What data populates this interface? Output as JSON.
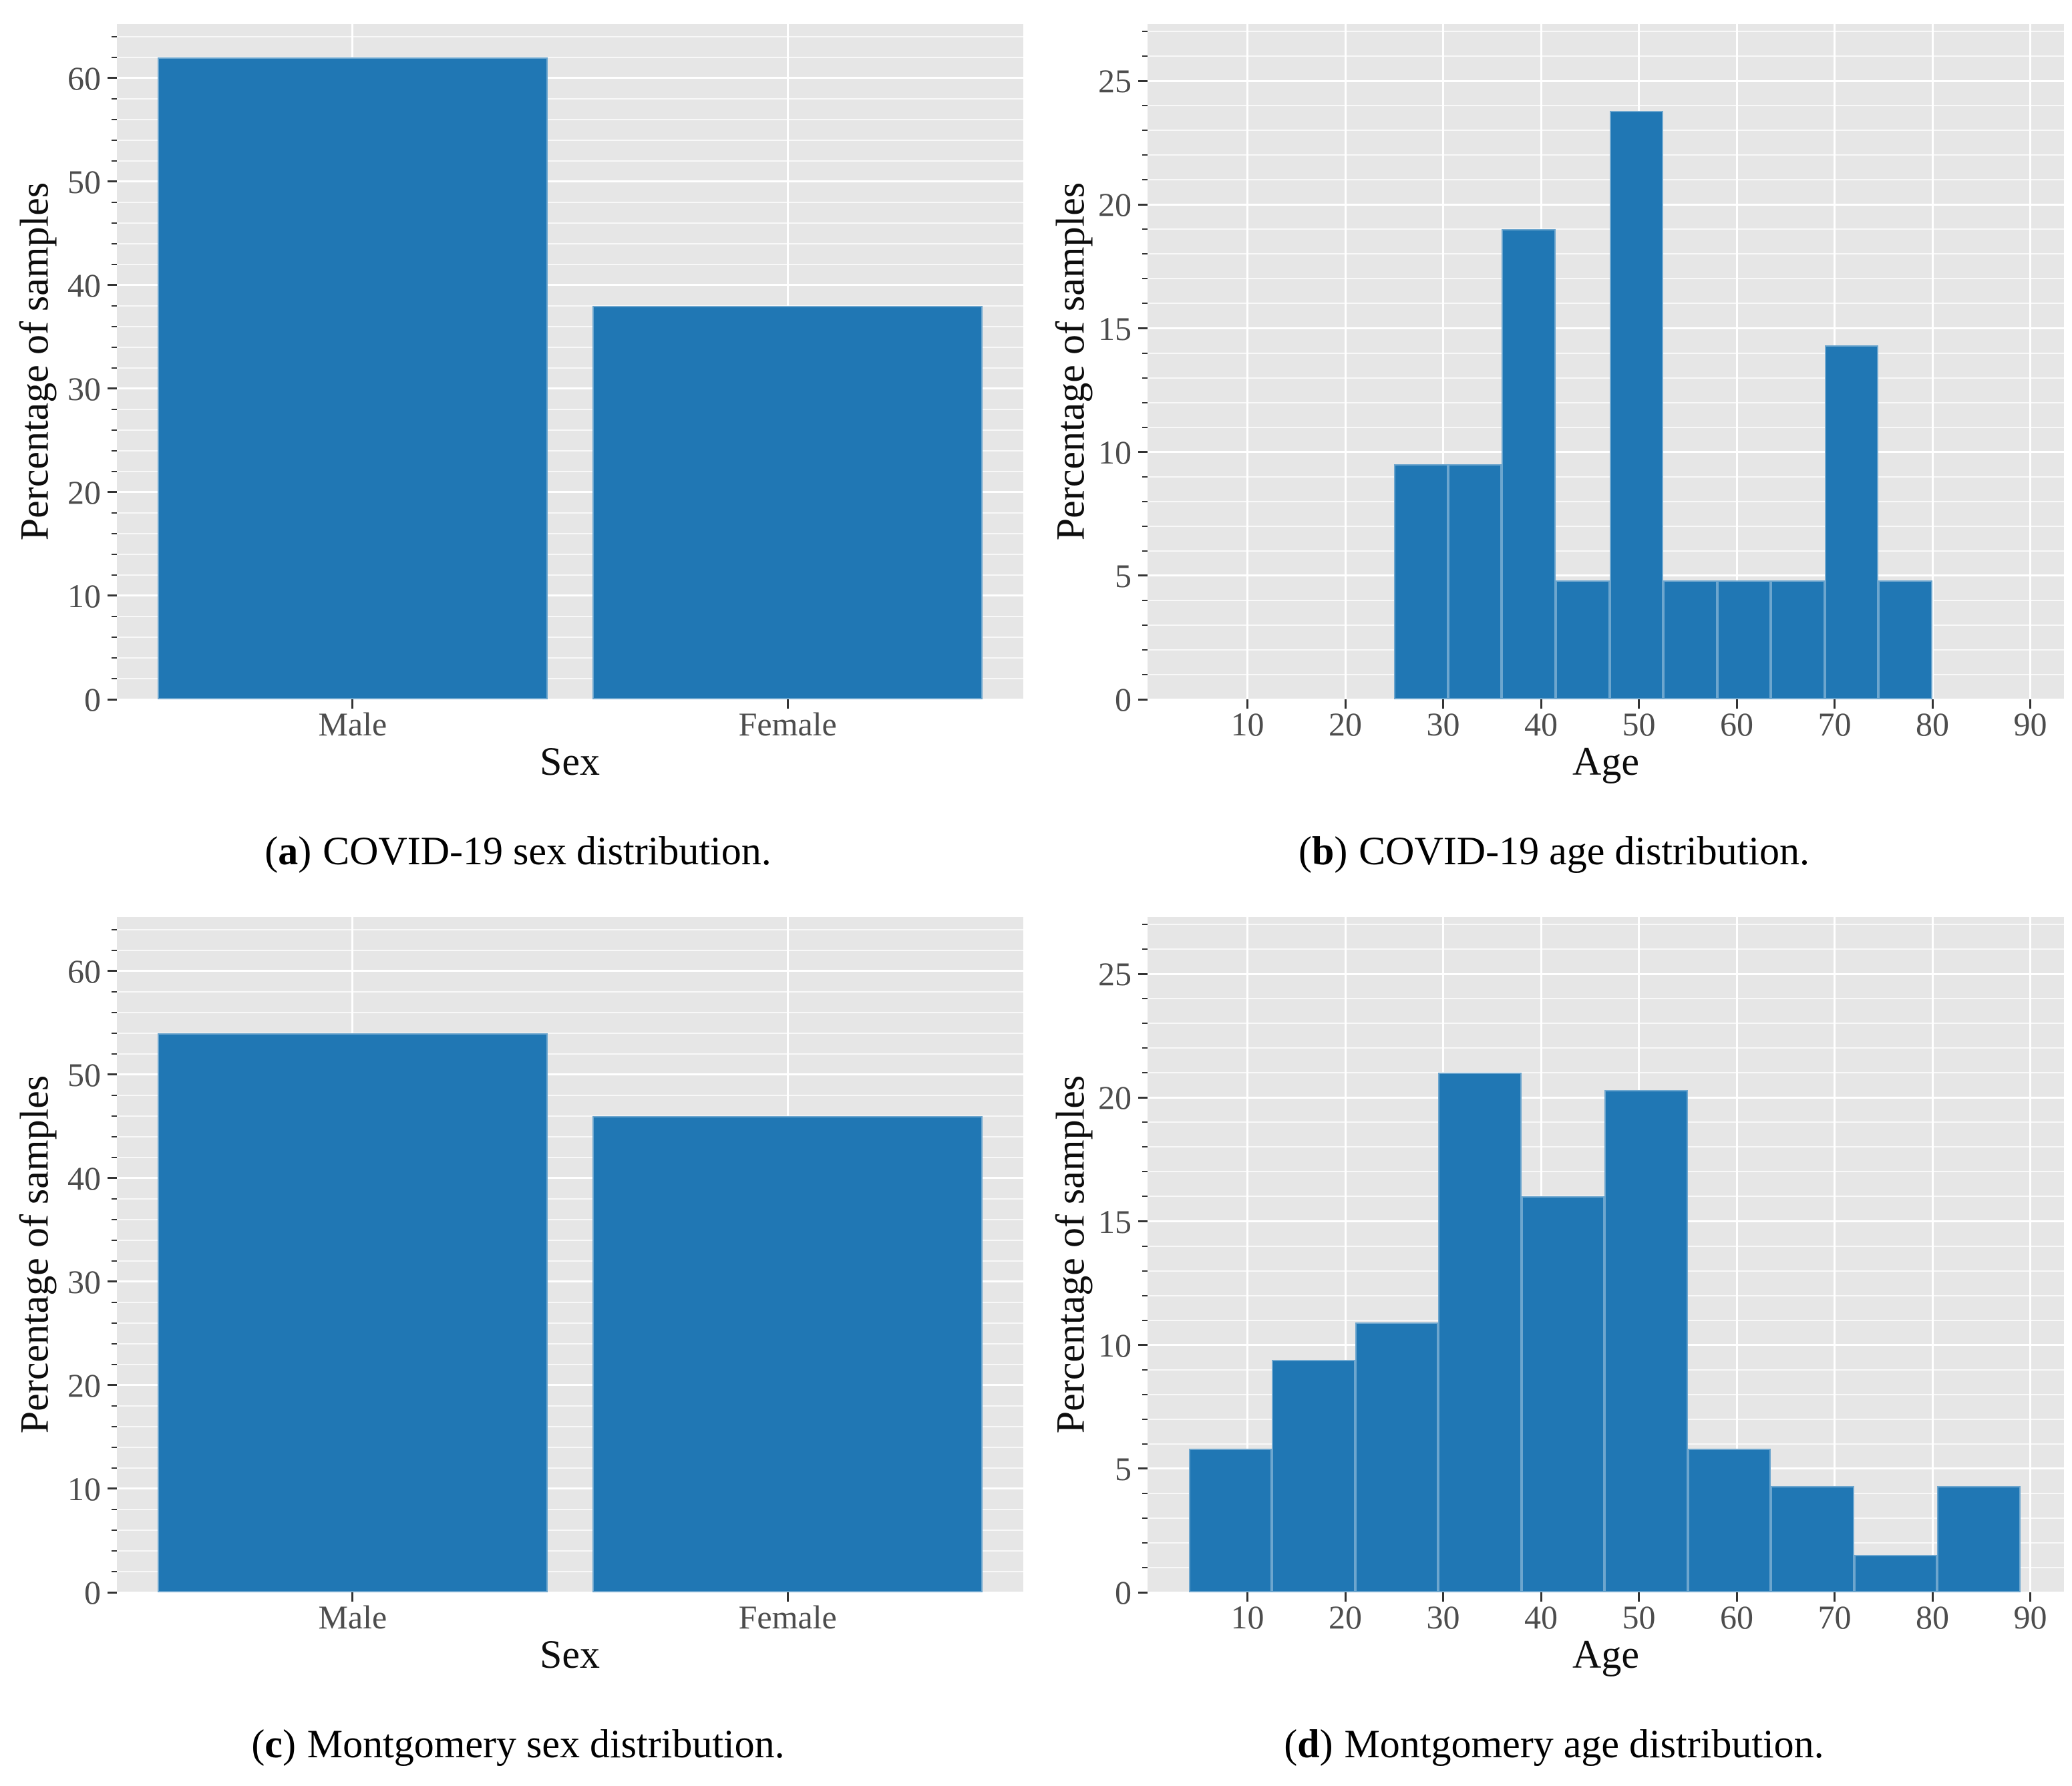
{
  "figure": {
    "background_color": "#ffffff",
    "bar_color": "#2077b4",
    "bar_edge_color": "rgba(255,255,255,0.35)",
    "panel_color": "#e6e6e6",
    "grid_major_color": "#ffffff",
    "grid_minor_color": "rgba(255,255,255,0.72)",
    "tick_mark_color": "#333333",
    "tick_label_color": "#4d4d4d",
    "axis_title_color": "#0d0d0d",
    "caption_color": "#000000"
  },
  "chart_data": [
    {
      "id": "a",
      "type": "bar",
      "xlabel": "Sex",
      "ylabel": "Percentage of samples",
      "categories": [
        "Male",
        "Female"
      ],
      "values": [
        62,
        38
      ],
      "y_ticks": [
        0,
        10,
        20,
        30,
        40,
        50,
        60
      ],
      "y_minor_step": 2,
      "ylim": [
        0,
        65.2
      ],
      "grid": "major+minor horizontal, major vertical at category centers",
      "legend": "none",
      "caption": {
        "open": "(",
        "letter": "a",
        "close": ")",
        "text": "COVID-19 sex distribution."
      }
    },
    {
      "id": "b",
      "type": "histogram",
      "xlabel": "Age",
      "ylabel": "Percentage of samples",
      "x_ticks": [
        10,
        20,
        30,
        40,
        50,
        60,
        70,
        80,
        90
      ],
      "y_ticks": [
        0,
        5,
        10,
        15,
        20,
        25
      ],
      "y_minor_step": 1,
      "ylim": [
        0,
        27.3
      ],
      "xlim": [
        -0.2,
        93.5
      ],
      "bin_start": 25,
      "bin_width": 5.5,
      "bin_edges": [
        25,
        30.5,
        36,
        41.5,
        47,
        52.5,
        58,
        63.5,
        69,
        74.5,
        80
      ],
      "bin_heights": [
        9.5,
        9.5,
        19.0,
        4.8,
        23.8,
        4.8,
        4.8,
        4.8,
        14.3,
        4.8
      ],
      "grid": "major+minor horizontal, major vertical every 10",
      "legend": "none",
      "caption": {
        "open": "(",
        "letter": "b",
        "close": ")",
        "text": "COVID-19 age distribution."
      }
    },
    {
      "id": "c",
      "type": "bar",
      "xlabel": "Sex",
      "ylabel": "Percentage of samples",
      "categories": [
        "Male",
        "Female"
      ],
      "values": [
        54,
        46
      ],
      "y_ticks": [
        0,
        10,
        20,
        30,
        40,
        50,
        60
      ],
      "y_minor_step": 2,
      "ylim": [
        0,
        65.2
      ],
      "grid": "major+minor horizontal, major vertical at category centers",
      "legend": "none",
      "caption": {
        "open": "(",
        "letter": "c",
        "close": ")",
        "text": "Montgomery sex distribution."
      }
    },
    {
      "id": "d",
      "type": "histogram",
      "xlabel": "Age",
      "ylabel": "Percentage of samples",
      "x_ticks": [
        10,
        20,
        30,
        40,
        50,
        60,
        70,
        80,
        90
      ],
      "y_ticks": [
        0,
        5,
        10,
        15,
        20,
        25
      ],
      "y_minor_step": 1,
      "ylim": [
        0,
        27.3
      ],
      "xlim": [
        -0.2,
        93.5
      ],
      "bin_start": 4,
      "bin_width": 8.5,
      "bin_edges": [
        4,
        12.5,
        21,
        29.5,
        38,
        46.5,
        55,
        63.5,
        72,
        80.5,
        89
      ],
      "bin_heights": [
        5.8,
        9.4,
        10.9,
        21.0,
        16.0,
        20.3,
        5.8,
        4.3,
        1.5,
        4.3
      ],
      "grid": "major+minor horizontal, major vertical every 10",
      "legend": "none",
      "caption": {
        "open": "(",
        "letter": "d",
        "close": ")",
        "text": "Montgomery age distribution."
      }
    }
  ]
}
